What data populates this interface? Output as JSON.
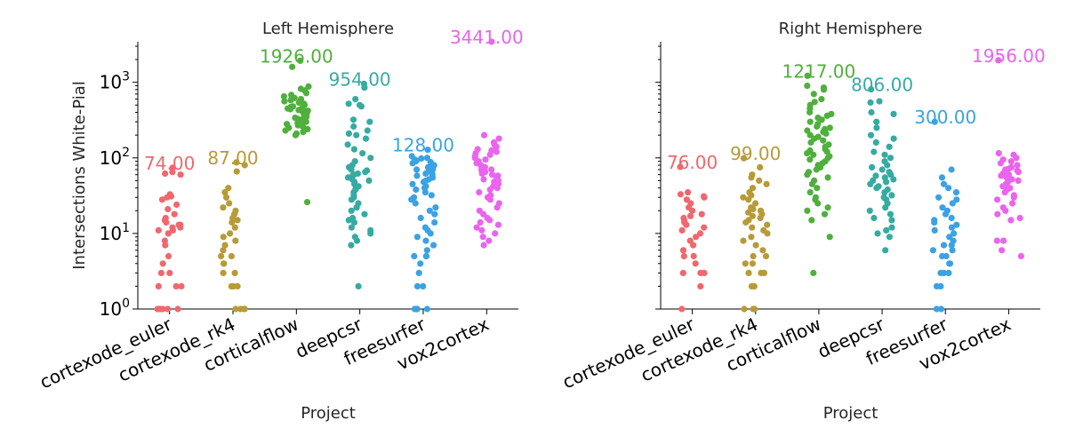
{
  "chart_data": [
    {
      "type": "scatter",
      "title": "Left Hemisphere",
      "xlabel": "Project",
      "ylabel": "Intersections White-Pial",
      "yscale": "log",
      "ylim": [
        1,
        3441
      ],
      "y_ticks": [
        1,
        10,
        100,
        1000
      ],
      "y_tick_labels": [
        {
          "base": "10",
          "exp": "0"
        },
        {
          "base": "10",
          "exp": "1"
        },
        {
          "base": "10",
          "exp": "2"
        },
        {
          "base": "10",
          "exp": "3"
        }
      ],
      "show_y_tick_labels": true,
      "categories": [
        "cortexode_euler",
        "cortexode_rk4",
        "corticalflow",
        "deepcsr",
        "freesurfer",
        "vox2cortex"
      ],
      "colors": [
        "#f0676e",
        "#b89a37",
        "#4fb03c",
        "#36aba2",
        "#3ba2e3",
        "#ea64ed"
      ],
      "max_labels": [
        "74.00",
        "87.00",
        "1926.00",
        "954.00",
        "128.00",
        "3441.00"
      ],
      "max_values": [
        74,
        87,
        1926,
        954,
        128,
        3441
      ],
      "series": [
        {
          "values": [
            74,
            65,
            62,
            60,
            33,
            31,
            30,
            28,
            24,
            21,
            18,
            16,
            15,
            14,
            13,
            13,
            12,
            12,
            11,
            11,
            10,
            8,
            7,
            5,
            4,
            3,
            3,
            2,
            2,
            2,
            1,
            1,
            1,
            1,
            1,
            1
          ]
        },
        {
          "values": [
            87,
            80,
            66,
            40,
            35,
            30,
            25,
            22,
            20,
            18,
            16,
            15,
            14,
            12,
            10,
            9,
            8,
            7,
            6,
            5,
            5,
            4,
            4,
            3,
            3,
            2,
            2,
            2,
            1,
            1,
            1,
            1
          ]
        },
        {
          "values": [
            1926,
            1600,
            880,
            820,
            780,
            720,
            680,
            650,
            620,
            600,
            580,
            560,
            540,
            520,
            500,
            480,
            470,
            460,
            450,
            440,
            430,
            420,
            410,
            400,
            390,
            380,
            370,
            360,
            350,
            340,
            330,
            320,
            310,
            300,
            290,
            280,
            270,
            260,
            250,
            240,
            230,
            220,
            210,
            200,
            26
          ]
        },
        {
          "values": [
            954,
            850,
            600,
            520,
            500,
            480,
            320,
            300,
            260,
            230,
            210,
            200,
            180,
            150,
            130,
            115,
            100,
            90,
            80,
            75,
            70,
            68,
            65,
            62,
            60,
            58,
            55,
            52,
            50,
            48,
            45,
            42,
            40,
            38,
            35,
            32,
            30,
            28,
            25,
            22,
            20,
            18,
            16,
            15,
            14,
            12,
            11,
            10,
            9,
            8,
            7,
            2
          ]
        },
        {
          "values": [
            128,
            105,
            100,
            98,
            95,
            92,
            90,
            88,
            85,
            80,
            78,
            75,
            72,
            70,
            68,
            65,
            62,
            60,
            58,
            55,
            52,
            50,
            48,
            45,
            42,
            40,
            38,
            35,
            32,
            30,
            28,
            25,
            22,
            20,
            18,
            16,
            14,
            12,
            11,
            10,
            9,
            8,
            7,
            6,
            5,
            5,
            5,
            4,
            3,
            2,
            2,
            1,
            1,
            1,
            1
          ]
        },
        {
          "values": [
            3441,
            200,
            180,
            160,
            150,
            140,
            130,
            125,
            120,
            115,
            110,
            105,
            100,
            95,
            90,
            85,
            80,
            75,
            72,
            70,
            68,
            65,
            62,
            60,
            58,
            55,
            52,
            50,
            48,
            45,
            42,
            40,
            38,
            35,
            32,
            30,
            28,
            25,
            22,
            20,
            18,
            16,
            15,
            14,
            13,
            12,
            11,
            10,
            9,
            8,
            7
          ]
        }
      ]
    },
    {
      "type": "scatter",
      "title": "Right Hemisphere",
      "xlabel": "Project",
      "ylabel": "",
      "yscale": "log",
      "ylim": [
        1,
        3441
      ],
      "y_ticks": [
        1,
        10,
        100,
        1000
      ],
      "y_tick_labels": [],
      "show_y_tick_labels": false,
      "categories": [
        "cortexode_euler",
        "cortexode_rk4",
        "corticalflow",
        "deepcsr",
        "freesurfer",
        "vox2cortex"
      ],
      "colors": [
        "#f0676e",
        "#b89a37",
        "#4fb03c",
        "#36aba2",
        "#3ba2e3",
        "#ea64ed"
      ],
      "max_labels": [
        "76.00",
        "99.00",
        "1217.00",
        "806.00",
        "300.00",
        "1956.00"
      ],
      "max_values": [
        76,
        99,
        1217,
        806,
        300,
        1956
      ],
      "series": [
        {
          "values": [
            76,
            35,
            33,
            31,
            30,
            28,
            25,
            22,
            20,
            18,
            17,
            16,
            15,
            14,
            13,
            12,
            11,
            10,
            9,
            8,
            7,
            6,
            5,
            5,
            4,
            3,
            3,
            3,
            2,
            1
          ]
        },
        {
          "values": [
            99,
            75,
            60,
            55,
            50,
            45,
            40,
            35,
            32,
            30,
            28,
            25,
            22,
            21,
            20,
            19,
            18,
            17,
            16,
            15,
            14,
            13,
            12,
            11,
            10,
            9,
            8,
            7,
            6,
            5,
            5,
            4,
            4,
            3,
            3,
            3,
            2,
            2,
            1,
            1,
            1
          ]
        },
        {
          "values": [
            1217,
            900,
            850,
            800,
            700,
            600,
            550,
            500,
            450,
            400,
            380,
            360,
            340,
            320,
            300,
            280,
            260,
            250,
            240,
            230,
            220,
            210,
            200,
            190,
            180,
            170,
            160,
            150,
            140,
            130,
            125,
            120,
            115,
            110,
            105,
            100,
            95,
            90,
            85,
            80,
            75,
            70,
            65,
            60,
            55,
            50,
            45,
            40,
            35,
            30,
            28,
            25,
            22,
            20,
            18,
            15,
            9,
            3
          ]
        },
        {
          "values": [
            806,
            560,
            540,
            400,
            380,
            300,
            250,
            200,
            180,
            160,
            140,
            120,
            110,
            100,
            90,
            80,
            75,
            70,
            65,
            60,
            58,
            55,
            52,
            50,
            48,
            45,
            42,
            40,
            38,
            35,
            32,
            30,
            28,
            25,
            22,
            20,
            18,
            16,
            15,
            12,
            11,
            10,
            9,
            6
          ]
        },
        {
          "values": [
            300,
            70,
            55,
            45,
            40,
            35,
            30,
            28,
            25,
            22,
            20,
            18,
            16,
            15,
            14,
            13,
            12,
            11,
            10,
            9,
            8,
            7,
            7,
            6,
            6,
            5,
            5,
            4,
            4,
            3,
            3,
            3,
            2,
            2,
            1,
            1
          ]
        },
        {
          "values": [
            1956,
            115,
            110,
            100,
            95,
            90,
            85,
            80,
            75,
            72,
            70,
            68,
            65,
            62,
            60,
            58,
            55,
            52,
            50,
            48,
            45,
            42,
            40,
            38,
            35,
            32,
            30,
            28,
            25,
            22,
            20,
            18,
            16,
            15,
            8,
            8,
            6,
            5
          ]
        }
      ]
    }
  ]
}
